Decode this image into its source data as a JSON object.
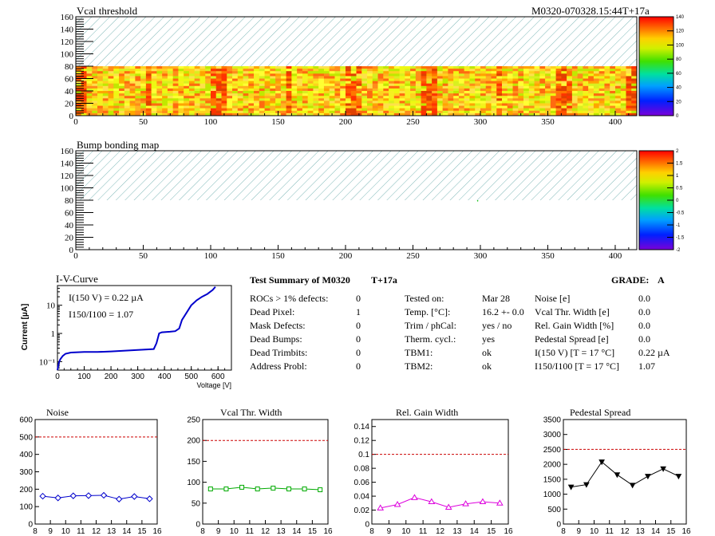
{
  "colors": {
    "frame": "#000000",
    "hatch": "#7fb8b8",
    "iv_curve": "#0000cc",
    "limit_line": "#cc0000",
    "noise": "#0000cc",
    "vcal_width": "#00aa00",
    "gain_width": "#dd00dd",
    "pedestal": "#000000"
  },
  "header": {
    "vcal_title": "Vcal threshold",
    "module_id": "M0320-070328.15:44T+17a",
    "bump_title": "Bump bonding map"
  },
  "summary": {
    "title": "Test Summary of M0320",
    "temp_label": "T+17a",
    "grade_label": "GRADE:",
    "grade_value": "A",
    "col1": [
      {
        "label": "ROCs > 1% defects:",
        "value": "0"
      },
      {
        "label": "Dead Pixel:",
        "value": "1"
      },
      {
        "label": "Mask Defects:",
        "value": "0"
      },
      {
        "label": "Dead Bumps:",
        "value": "0"
      },
      {
        "label": "Dead Trimbits:",
        "value": "0"
      },
      {
        "label": "Address Probl:",
        "value": "0"
      }
    ],
    "col2": [
      {
        "label": "Tested on:",
        "value": "Mar 28"
      },
      {
        "label": "Temp. [°C]:",
        "value": "16.2 +- 0.0"
      },
      {
        "label": "Trim / phCal:",
        "value": "yes / no"
      },
      {
        "label": "Therm. cycl.:",
        "value": "yes"
      },
      {
        "label": "TBM1:",
        "value": "ok"
      },
      {
        "label": "TBM2:",
        "value": "ok"
      }
    ],
    "col3": [
      {
        "label": "Noise [e]",
        "value": "0.0"
      },
      {
        "label": "Vcal Thr. Width [e]",
        "value": "0.0"
      },
      {
        "label": "Rel. Gain Width [%]",
        "value": "0.0"
      },
      {
        "label": "Pedestal Spread [e]",
        "value": "0.0"
      },
      {
        "label": "I(150 V) [T = 17 °C]",
        "value": "0.22 µA"
      },
      {
        "label": "I150/I100  [T = 17 °C]",
        "value": "1.07"
      }
    ]
  },
  "chart_data": [
    {
      "type": "heatmap",
      "title": "Vcal threshold",
      "xlim": [
        0,
        416
      ],
      "ylim": [
        0,
        160
      ],
      "xticks": [
        0,
        50,
        100,
        150,
        200,
        250,
        300,
        350,
        400
      ],
      "yticks": [
        0,
        20,
        40,
        60,
        80,
        100,
        120,
        140,
        160
      ],
      "filled_rows": [
        0,
        80
      ],
      "empty_rows_hatched": [
        80,
        160
      ],
      "palette_range": [
        0,
        140
      ],
      "palette_ticks": [
        0,
        20,
        40,
        60,
        80,
        100,
        120,
        140
      ]
    },
    {
      "type": "heatmap",
      "title": "Bump bonding map",
      "xlim": [
        0,
        416
      ],
      "ylim": [
        0,
        160
      ],
      "xticks": [
        0,
        50,
        100,
        150,
        200,
        250,
        300,
        350,
        400
      ],
      "yticks": [
        0,
        20,
        40,
        60,
        80,
        100,
        120,
        140,
        160
      ],
      "empty_rows_hatched": [
        80,
        160
      ],
      "palette_range": [
        -2,
        2
      ],
      "palette_ticks": [
        "-2",
        "-1.5",
        "-1",
        "-0.5",
        "0",
        "0.5",
        "1",
        "1.5",
        "2"
      ]
    },
    {
      "type": "line",
      "title": "I-V-Curve",
      "xlabel": "Voltage [V]",
      "ylabel": "Current [µA]",
      "log_y": true,
      "xlim": [
        0,
        650
      ],
      "ylim": [
        0.05,
        50
      ],
      "xticks": [
        0,
        100,
        200,
        300,
        400,
        500,
        600
      ],
      "ytick_labels": [
        "10⁻¹",
        "1",
        "10"
      ],
      "annotations": [
        "I(150 V) = 0.22 µA",
        "I150/I100 =  1.07"
      ],
      "x": [
        0,
        5,
        10,
        20,
        30,
        50,
        100,
        150,
        200,
        300,
        360,
        370,
        380,
        390,
        420,
        440,
        455,
        465,
        480,
        500,
        520,
        540,
        560,
        580,
        590
      ],
      "y": [
        0.05,
        0.09,
        0.12,
        0.16,
        0.19,
        0.21,
        0.22,
        0.22,
        0.23,
        0.26,
        0.28,
        0.45,
        1.0,
        1.1,
        1.15,
        1.2,
        1.5,
        3.0,
        5.0,
        10.0,
        15.0,
        20.0,
        25.0,
        35.0,
        45.0
      ]
    },
    {
      "type": "line",
      "title": "Noise",
      "xlim": [
        8,
        16
      ],
      "ylim": [
        0,
        600
      ],
      "xticks": [
        8,
        9,
        10,
        11,
        12,
        13,
        14,
        15,
        16
      ],
      "yticks": [
        0,
        100,
        200,
        300,
        400,
        500,
        600
      ],
      "limit": 500,
      "x": [
        8.5,
        9.5,
        10.5,
        11.5,
        12.5,
        13.5,
        14.5,
        15.5
      ],
      "y": [
        160,
        150,
        162,
        163,
        165,
        143,
        158,
        145
      ]
    },
    {
      "type": "line",
      "title": "Vcal Thr. Width",
      "xlim": [
        8,
        16
      ],
      "ylim": [
        0,
        250
      ],
      "xticks": [
        8,
        9,
        10,
        11,
        12,
        13,
        14,
        15,
        16
      ],
      "yticks": [
        0,
        50,
        100,
        150,
        200,
        250
      ],
      "limit": 200,
      "x": [
        8.5,
        9.5,
        10.5,
        11.5,
        12.5,
        13.5,
        14.5,
        15.5
      ],
      "y": [
        84,
        84,
        88,
        84,
        86,
        84,
        84,
        82
      ]
    },
    {
      "type": "line",
      "title": "Rel. Gain Width",
      "xlim": [
        8,
        16
      ],
      "ylim": [
        0,
        0.15
      ],
      "xticks": [
        8,
        9,
        10,
        11,
        12,
        13,
        14,
        15,
        16
      ],
      "yticks": [
        0,
        0.02,
        0.04,
        0.06,
        0.08,
        0.1,
        0.12,
        0.14
      ],
      "limit": 0.1,
      "x": [
        8.5,
        9.5,
        10.5,
        11.5,
        12.5,
        13.5,
        14.5,
        15.5
      ],
      "y": [
        0.023,
        0.028,
        0.038,
        0.032,
        0.024,
        0.029,
        0.032,
        0.03
      ]
    },
    {
      "type": "line",
      "title": "Pedestal Spread",
      "xlim": [
        8,
        16
      ],
      "ylim": [
        0,
        3500
      ],
      "xticks": [
        8,
        9,
        10,
        11,
        12,
        13,
        14,
        15,
        16
      ],
      "yticks": [
        0,
        500,
        1000,
        1500,
        2000,
        2500,
        3000,
        3500
      ],
      "limit": 2500,
      "x": [
        8.5,
        9.5,
        10.5,
        11.5,
        12.5,
        13.5,
        14.5,
        15.5
      ],
      "y": [
        1240,
        1320,
        2080,
        1650,
        1300,
        1600,
        1850,
        1600
      ]
    }
  ]
}
